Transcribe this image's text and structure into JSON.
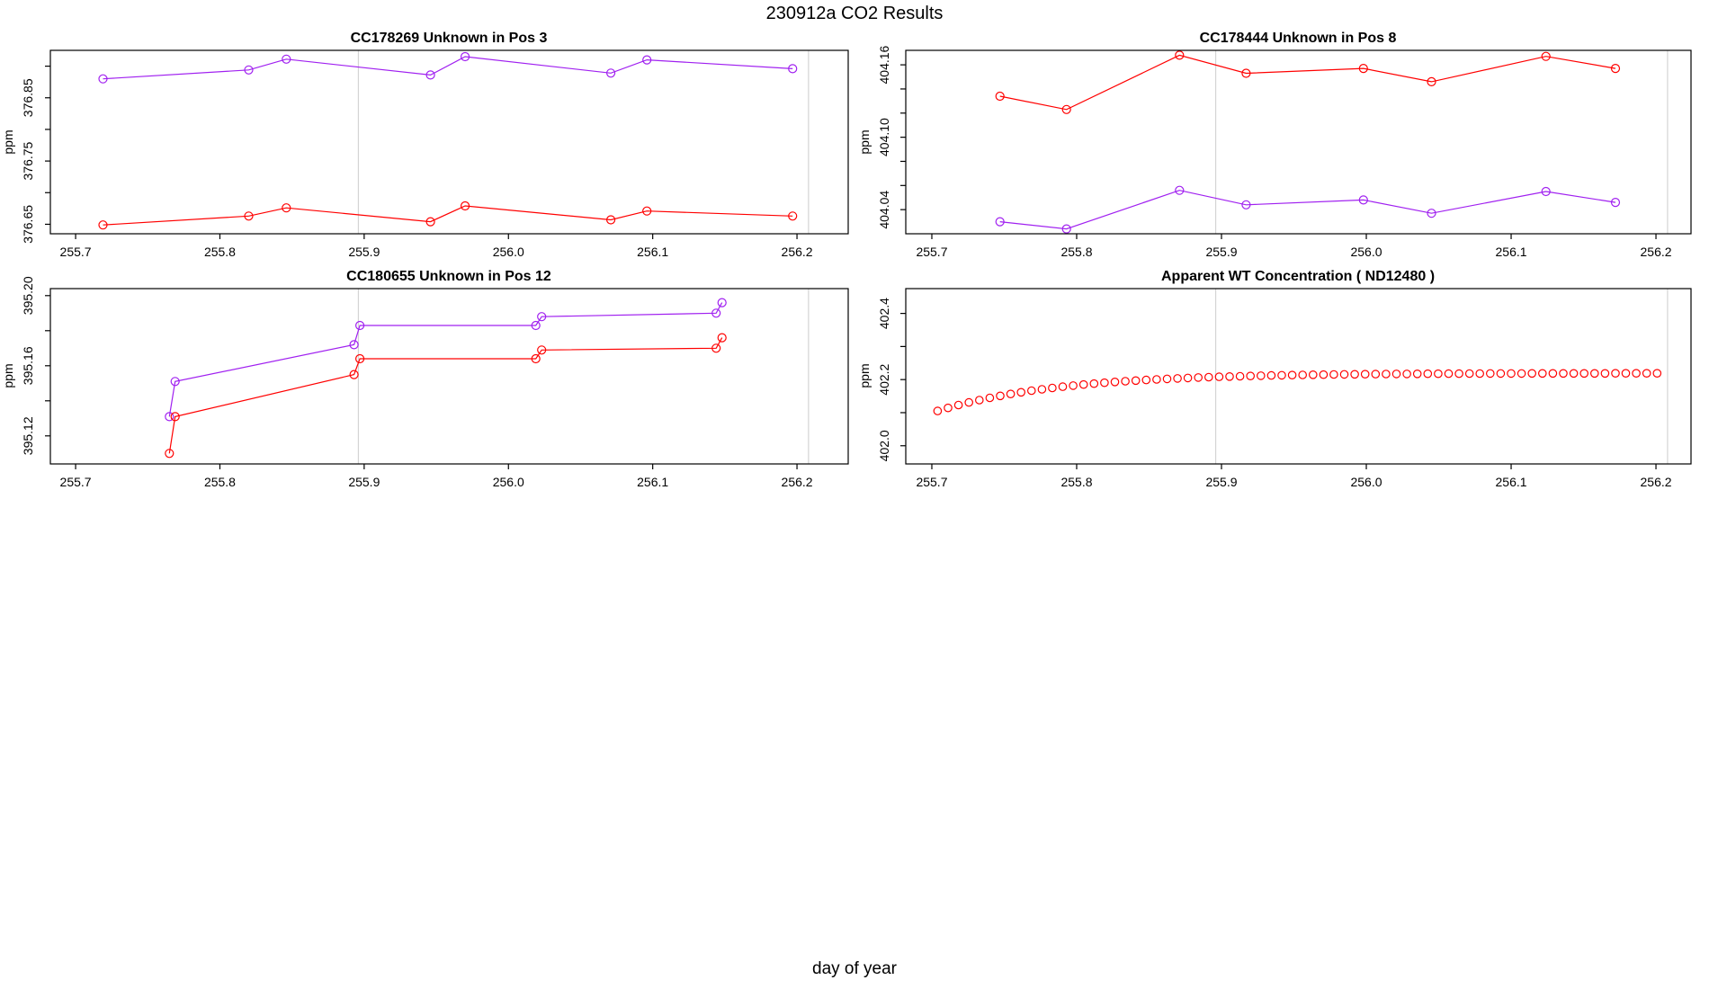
{
  "title": "230912a  CO2 Results",
  "xlabel": "day of year",
  "ylabel": "ppm",
  "colors": {
    "purple": "#a020f0",
    "red": "#ff0000",
    "grid": "#d4d4d4",
    "axis": "#000000"
  },
  "x_ticks": [
    {
      "v": 255.7,
      "label": "255.7"
    },
    {
      "v": 255.8,
      "label": "255.8"
    },
    {
      "v": 255.9,
      "label": "255.9"
    },
    {
      "v": 256.0,
      "label": "256.0"
    },
    {
      "v": 256.1,
      "label": "256.1"
    },
    {
      "v": 256.2,
      "label": "256.2"
    }
  ],
  "gridlines_x": [
    255.896,
    256.208
  ],
  "chart_data": [
    {
      "type": "line",
      "title": "CC178269   Unknown in Pos 3",
      "ylabel": "ppm",
      "row": 0,
      "col": 0,
      "xlim": [
        255.6825,
        256.2355
      ],
      "ylim": [
        376.635,
        376.925
      ],
      "y_ticks": [
        {
          "v": 376.65,
          "label": "376.65"
        },
        {
          "v": 376.7,
          "label": ""
        },
        {
          "v": 376.75,
          "label": "376.75"
        },
        {
          "v": 376.8,
          "label": ""
        },
        {
          "v": 376.85,
          "label": "376.85"
        },
        {
          "v": 376.9,
          "label": ""
        }
      ],
      "series": [
        {
          "name": "purple",
          "color": "purple",
          "line": true,
          "x": [
            255.719,
            255.82,
            255.846,
            255.946,
            255.97,
            256.071,
            256.096,
            256.197
          ],
          "y": [
            376.88,
            376.894,
            376.911,
            376.886,
            376.915,
            376.889,
            376.91,
            376.896
          ]
        },
        {
          "name": "red",
          "color": "red",
          "line": true,
          "x": [
            255.719,
            255.82,
            255.846,
            255.946,
            255.97,
            256.071,
            256.096,
            256.197
          ],
          "y": [
            376.649,
            376.663,
            376.676,
            376.654,
            376.679,
            376.657,
            376.671,
            376.663
          ]
        }
      ]
    },
    {
      "type": "line",
      "title": "CC178444   Unknown in Pos 8",
      "ylabel": "ppm",
      "row": 0,
      "col": 1,
      "xlim": [
        255.682,
        256.2242
      ],
      "ylim": [
        404.02,
        404.172
      ],
      "y_ticks": [
        {
          "v": 404.04,
          "label": "404.04"
        },
        {
          "v": 404.06,
          "label": ""
        },
        {
          "v": 404.08,
          "label": ""
        },
        {
          "v": 404.1,
          "label": "404.10"
        },
        {
          "v": 404.12,
          "label": ""
        },
        {
          "v": 404.14,
          "label": ""
        },
        {
          "v": 404.16,
          "label": "404.16"
        }
      ],
      "series": [
        {
          "name": "red",
          "color": "red",
          "line": true,
          "x": [
            255.747,
            255.793,
            255.871,
            255.917,
            255.998,
            256.045,
            256.124,
            256.172
          ],
          "y": [
            404.134,
            404.123,
            404.168,
            404.153,
            404.157,
            404.146,
            404.167,
            404.157
          ]
        },
        {
          "name": "purple",
          "color": "purple",
          "line": true,
          "x": [
            255.747,
            255.793,
            255.871,
            255.917,
            255.998,
            256.045,
            256.124,
            256.172
          ],
          "y": [
            404.03,
            404.024,
            404.056,
            404.044,
            404.048,
            404.037,
            404.055,
            404.046
          ]
        }
      ]
    },
    {
      "type": "line",
      "title": "CC180655   Unknown in Pos 12",
      "ylabel": "ppm",
      "row": 1,
      "col": 0,
      "xlim": [
        255.6825,
        256.2355
      ],
      "ylim": [
        395.104,
        395.204
      ],
      "y_ticks": [
        {
          "v": 395.12,
          "label": "395.12"
        },
        {
          "v": 395.14,
          "label": ""
        },
        {
          "v": 395.16,
          "label": "395.16"
        },
        {
          "v": 395.18,
          "label": ""
        },
        {
          "v": 395.2,
          "label": "395.20"
        }
      ],
      "series": [
        {
          "name": "purple",
          "color": "purple",
          "line": true,
          "x": [
            255.765,
            255.769,
            255.893,
            255.897,
            256.019,
            256.023,
            256.144,
            256.148
          ],
          "y": [
            395.131,
            395.151,
            395.172,
            395.183,
            395.183,
            395.188,
            395.19,
            395.196
          ]
        },
        {
          "name": "red",
          "color": "red",
          "line": true,
          "x": [
            255.765,
            255.769,
            255.893,
            255.897,
            256.019,
            256.023,
            256.144,
            256.148
          ],
          "y": [
            395.11,
            395.131,
            395.155,
            395.164,
            395.164,
            395.169,
            395.17,
            395.176
          ]
        }
      ]
    },
    {
      "type": "scatter",
      "title": "Apparent WT Concentration ( ND12480 )",
      "ylabel": "ppm",
      "row": 1,
      "col": 1,
      "xlim": [
        255.682,
        256.2242
      ],
      "ylim": [
        401.945,
        402.475
      ],
      "y_ticks": [
        {
          "v": 402.0,
          "label": "402.0"
        },
        {
          "v": 402.1,
          "label": ""
        },
        {
          "v": 402.2,
          "label": "402.2"
        },
        {
          "v": 402.3,
          "label": ""
        },
        {
          "v": 402.4,
          "label": "402.4"
        }
      ],
      "series": [
        {
          "name": "red",
          "color": "red",
          "line": false,
          "x": [
            255.704,
            255.7112,
            255.7184,
            255.7256,
            255.7328,
            255.74,
            255.7472,
            255.7544,
            255.7616,
            255.7688,
            255.776,
            255.7832,
            255.7904,
            255.7976,
            255.8048,
            255.812,
            255.8192,
            255.8264,
            255.8336,
            255.8408,
            255.848,
            255.8552,
            255.8624,
            255.8696,
            255.8768,
            255.884,
            255.8912,
            255.8984,
            255.9056,
            255.9128,
            255.92,
            255.9272,
            255.9344,
            255.9416,
            255.9488,
            255.956,
            255.9632,
            255.9704,
            255.9776,
            255.9848,
            255.992,
            255.9992,
            256.0064,
            256.0136,
            256.0208,
            256.028,
            256.0352,
            256.0424,
            256.0496,
            256.0568,
            256.064,
            256.0712,
            256.0784,
            256.0856,
            256.0928,
            256.1,
            256.1072,
            256.1144,
            256.1216,
            256.1288,
            256.136,
            256.1432,
            256.1504,
            256.1576,
            256.1648,
            256.172,
            256.1792,
            256.1864,
            256.1936,
            256.2008
          ],
          "y": [
            402.105,
            402.1143,
            402.1229,
            402.1308,
            402.1381,
            402.1447,
            402.1508,
            402.1564,
            402.1616,
            402.1664,
            402.1707,
            402.1747,
            402.1784,
            402.1818,
            402.1849,
            402.1877,
            402.1903,
            402.1928,
            402.195,
            402.197,
            402.1989,
            402.2006,
            402.2022,
            402.2036,
            402.2049,
            402.2062,
            402.2073,
            402.2083,
            402.2093,
            402.2101,
            402.2109,
            402.2117,
            402.2124,
            402.213,
            402.2135,
            402.2141,
            402.2145,
            402.215,
            402.2154,
            402.2157,
            402.216,
            402.2163,
            402.2166,
            402.2168,
            402.217,
            402.2172,
            402.2174,
            402.2176,
            402.2177,
            402.2178,
            402.218,
            402.2181,
            402.2182,
            402.2183,
            402.2184,
            402.2184,
            402.2185,
            402.2186,
            402.2186,
            402.2187,
            402.2187,
            402.2187,
            402.2188,
            402.2188,
            402.2188,
            402.2189,
            402.2189,
            402.2189,
            402.2189,
            402.2189
          ]
        }
      ]
    }
  ]
}
